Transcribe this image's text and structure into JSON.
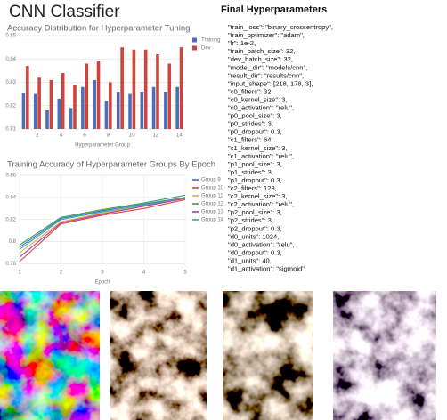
{
  "header": {
    "title": "CNN Classifier",
    "hyperparameters_title": "Final Hyperparameters"
  },
  "hyperparameters": [
    "\"train_loss\": \"binary_crossentropy\",",
    "\"train_optimizer\": \"adam\",",
    "\"lr\": 1e-2,",
    "\"train_batch_size\": 32,",
    "\"dev_batch_size\": 32,",
    "\"model_dir\": \"models/cnn\",",
    "\"result_dir\": \"results/cnn\",",
    "\"input_shape\": [218, 178, 3],",
    "\"c0_filters\": 32,",
    "\"c0_kernel_size\": 3,",
    "\"c0_activation\": \"relu\",",
    "\"p0_pool_size\": 3,",
    "\"p0_strides\": 3,",
    "\"p0_dropout\": 0.3,",
    "\"c1_filters\": 64,",
    "\"c1_kernel_size\": 3,",
    "\"c1_activation\": \"relu\",",
    "\"p1_pool_size\": 3,",
    "\"p1_strides\": 3,",
    "\"p1_dropout\": 0.3,",
    "\"c2_filters\": 128,",
    "\"c2_kernel_size\": 3,",
    "\"c2_activation\": \"relu\",",
    "\"p2_pool_size\": 3,",
    "\"p2_strides\": 3,",
    "\"p2_dropout\": 0.3,",
    "\"d0_units\": 1024,",
    "\"d0_activation\": \"relu\",",
    "\"d0_dropout\": 0.3,",
    "\"d1_units\": 40,",
    "\"d1_activation\": \"sigmoid\""
  ],
  "chart_data": [
    {
      "type": "bar",
      "title": "Accuracy Distribution for Hyperparameter Tuning",
      "xlabel": "Hyperparameter Group",
      "categories": [
        null,
        2,
        null,
        4,
        null,
        6,
        null,
        8,
        null,
        10,
        null,
        12,
        null,
        14
      ],
      "series": [
        {
          "name": "Training",
          "color": "#4a6fb8",
          "values": [
            0.8255,
            0.825,
            0.818,
            0.823,
            0.819,
            0.828,
            0.831,
            0.822,
            0.826,
            0.825,
            0.826,
            0.828,
            0.826,
            0.828
          ]
        },
        {
          "name": "Dev",
          "color": "#d2413a",
          "values": [
            0.837,
            0.832,
            0.831,
            0.834,
            0.829,
            0.838,
            0.839,
            0.83,
            0.845,
            0.844,
            0.844,
            0.842,
            0.838,
            0.845
          ]
        }
      ],
      "ylim": [
        0.81,
        0.85
      ],
      "yticks": [
        0.81,
        0.82,
        0.83,
        0.84,
        0.85
      ],
      "grid": true,
      "legend": "right"
    },
    {
      "type": "line",
      "title": "Training Accuracy of Hyperparameter Groups By Epoch",
      "xlabel": "Epoch",
      "x": [
        1,
        2,
        3,
        4,
        5
      ],
      "series": [
        {
          "name": "Group 9",
          "color": "#3b6fc4",
          "values": [
            0.795,
            0.821,
            0.828,
            0.834,
            0.84
          ]
        },
        {
          "name": "Group 10",
          "color": "#d9463b",
          "values": [
            0.782,
            0.816,
            0.824,
            0.83,
            0.838
          ]
        },
        {
          "name": "Group 11",
          "color": "#f2a33a",
          "values": [
            0.79,
            0.818,
            0.826,
            0.832,
            0.84
          ]
        },
        {
          "name": "Group 12",
          "color": "#3e9d4f",
          "values": [
            0.797,
            0.822,
            0.829,
            0.835,
            0.842
          ]
        },
        {
          "name": "Group 13",
          "color": "#a0449c",
          "values": [
            0.786,
            0.817,
            0.825,
            0.832,
            0.839
          ]
        },
        {
          "name": "Group 14",
          "color": "#36a3b3",
          "values": [
            0.793,
            0.82,
            0.827,
            0.833,
            0.84
          ]
        }
      ],
      "xlim": [
        1,
        5
      ],
      "xticks": [
        1,
        2,
        3,
        4,
        5
      ],
      "ylim": [
        0.778,
        0.86
      ],
      "yticks": [
        0.78,
        0.8,
        0.82,
        0.84,
        0.86
      ],
      "grid": true,
      "legend": "right"
    }
  ]
}
